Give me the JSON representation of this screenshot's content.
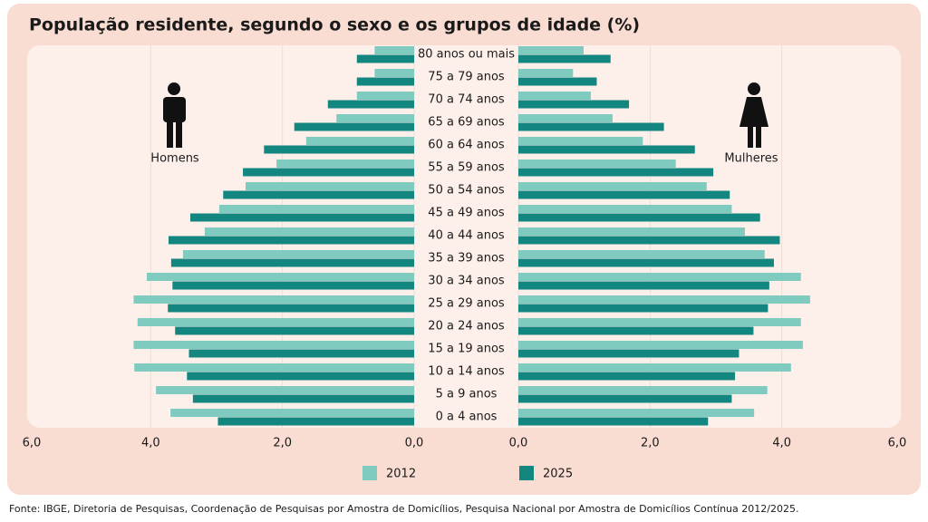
{
  "chart_data": {
    "type": "pyramid",
    "title": "População residente, segundo o sexo e os grupos de idade (%)",
    "left_label": "Homens",
    "right_label": "Mulheres",
    "categories": [
      "80 anos ou mais",
      "75 a 79 anos",
      "70 a 74 anos",
      "65 a 69 anos",
      "60 a 64 anos",
      "55 a 59 anos",
      "50 a 54 anos",
      "45 a 49 anos",
      "40 a 44 anos",
      "35 a 39 anos",
      "30 a 34 anos",
      "25 a 29 anos",
      "20 a 24 anos",
      "15 a 19 anos",
      "10 a 14 anos",
      "5 a 9 anos",
      "0 a 4 anos"
    ],
    "series": [
      {
        "name": "2012",
        "color": "#7fcbc0",
        "homens": [
          0.6,
          0.6,
          0.87,
          1.18,
          1.64,
          2.09,
          2.56,
          2.96,
          3.18,
          3.51,
          4.06,
          4.26,
          4.2,
          4.26,
          4.25,
          3.92,
          3.7
        ],
        "mulheres": [
          0.99,
          0.83,
          1.1,
          1.43,
          1.89,
          2.39,
          2.86,
          3.24,
          3.44,
          3.74,
          4.29,
          4.43,
          4.29,
          4.32,
          4.14,
          3.78,
          3.58
        ]
      },
      {
        "name": "2025",
        "color": "#12867f",
        "homens": [
          0.87,
          0.87,
          1.31,
          1.82,
          2.28,
          2.6,
          2.9,
          3.4,
          3.73,
          3.69,
          3.67,
          3.74,
          3.63,
          3.42,
          3.45,
          3.36,
          2.98
        ],
        "mulheres": [
          1.4,
          1.19,
          1.68,
          2.21,
          2.68,
          2.96,
          3.21,
          3.67,
          3.97,
          3.88,
          3.81,
          3.79,
          3.57,
          3.35,
          3.29,
          3.24,
          2.88
        ]
      }
    ],
    "xlim": [
      0,
      6
    ],
    "xticks": [
      {
        "value": 0,
        "label": "0,0"
      },
      {
        "value": 2,
        "label": "2,0"
      },
      {
        "value": 4,
        "label": "4,0"
      },
      {
        "value": 6,
        "label": "6,0"
      }
    ],
    "grid": true,
    "source": "Fonte: IBGE, Diretoria de Pesquisas, Coordenação de Pesquisas por Amostra de Domicílios, Pesquisa Nacional por Amostra de Domicílios Contínua 2012/2025."
  }
}
